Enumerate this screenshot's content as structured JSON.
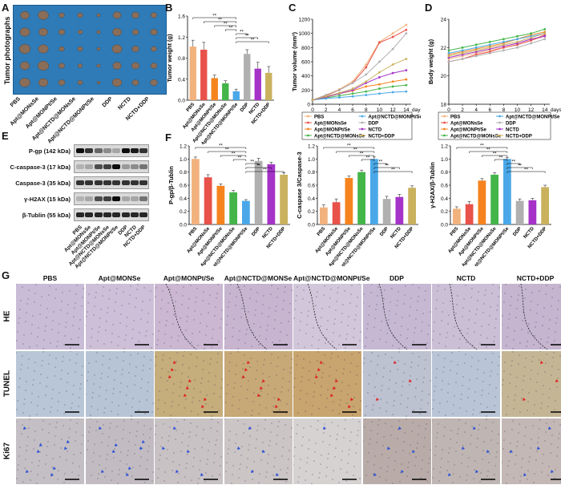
{
  "panels": {
    "A": {
      "letter": "A",
      "vertical_label": "Tumor photographs",
      "groups": [
        "PBS",
        "Apt@MONsSe",
        "Apt@MONPt/Se",
        "Apt@NCTD@MONsSe",
        "Apt@NCTD@MONPt/Se",
        "DDP",
        "NCTD",
        "NCTD+DDP"
      ]
    },
    "B": {
      "letter": "B"
    },
    "C": {
      "letter": "C"
    },
    "D": {
      "letter": "D"
    },
    "E": {
      "letter": "E",
      "bands": [
        "P-gp (142 kDa)",
        "C-caspase-3 (17 kDa)",
        "Caspase-3 (35 kDa)",
        "γ-H2AX (15 kDa)",
        "β-Tublin (55 kDa)"
      ],
      "groups": [
        "PBS",
        "Apt@MONsSe",
        "Apt@MONPt/Se",
        "Apt@NCTD@MONsSe",
        "Apt@NCTD@MONPt/Se",
        "DDP",
        "NCTD",
        "NCTD+DDP"
      ]
    },
    "F": {
      "letter": "F"
    },
    "G": {
      "letter": "G",
      "columns": [
        "PBS",
        "Apt@MONSe",
        "Apt@MONPt/Se",
        "Apt@NCTD@MONSe",
        "Apt@NCTD@MONPt/Se",
        "DDP",
        "NCTD",
        "NCTD+DDP"
      ],
      "rows": [
        "HE",
        "TUNEL",
        "Ki67"
      ]
    }
  },
  "colors": {
    "PBS": "#f2b27d",
    "Apt@MONsSe": "#e8524a",
    "Apt@MONPt/Se": "#f5841f",
    "Apt@NCTD@MONsSe": "#44b549",
    "Apt@NCTD@MONPt/Se": "#4aa8e8",
    "DDP": "#b0b0b0",
    "NCTD": "#a533c8",
    "NCTD+DDP": "#c9b15e"
  },
  "chart_data": [
    {
      "id": "B",
      "type": "bar",
      "title": "",
      "xlabel": "",
      "ylabel": "Tumor weight (g)",
      "ylim": [
        0,
        1.6
      ],
      "yticks": [
        0.0,
        0.4,
        0.8,
        1.2,
        1.6
      ],
      "categories": [
        "PBS",
        "Apt@MONsSe",
        "Apt@MONPt/Se",
        "Apt@NCTD@MONsSe",
        "Apt@NCTD@MONPt/Se",
        "DDP",
        "NCTD",
        "NCTD+DDP"
      ],
      "values": [
        1.02,
        0.96,
        0.42,
        0.32,
        0.17,
        0.88,
        0.6,
        0.52
      ],
      "errors": [
        0.12,
        0.14,
        0.06,
        0.05,
        0.04,
        0.08,
        0.12,
        0.12
      ],
      "sig": "**"
    },
    {
      "id": "C",
      "type": "line",
      "title": "",
      "xlabel": "days",
      "ylabel": "Tumor volume (mm³)",
      "ylim": [
        0,
        1200
      ],
      "yticks": [
        0,
        200,
        400,
        600,
        800,
        1000,
        1200
      ],
      "x": [
        0,
        2,
        4,
        6,
        8,
        10,
        12,
        14
      ],
      "xticks": [
        0,
        2,
        4,
        6,
        8,
        10,
        12,
        14
      ],
      "series": [
        {
          "name": "PBS",
          "values": [
            60,
            130,
            210,
            320,
            560,
            880,
            1000,
            1120
          ]
        },
        {
          "name": "Apt@MONsSe",
          "values": [
            60,
            120,
            200,
            300,
            520,
            870,
            950,
            1050
          ]
        },
        {
          "name": "Apt@MONPt/Se",
          "values": [
            60,
            100,
            150,
            190,
            250,
            280,
            320,
            350
          ]
        },
        {
          "name": "Apt@NCTD@MONsSe",
          "values": [
            60,
            90,
            120,
            150,
            180,
            220,
            250,
            270
          ]
        },
        {
          "name": "Apt@NCTD@MONPt/Se",
          "values": [
            60,
            80,
            95,
            110,
            130,
            150,
            170,
            180
          ]
        },
        {
          "name": "DDP",
          "values": [
            60,
            130,
            200,
            300,
            420,
            600,
            780,
            1000
          ]
        },
        {
          "name": "NCTD",
          "values": [
            60,
            100,
            150,
            200,
            300,
            380,
            440,
            480
          ]
        },
        {
          "name": "NCTD+DDP",
          "values": [
            60,
            110,
            160,
            220,
            320,
            450,
            560,
            640
          ]
        }
      ],
      "legend_placement": "bottom"
    },
    {
      "id": "D",
      "type": "line",
      "title": "",
      "xlabel": "days",
      "ylabel": "Body weight (g)",
      "ylim": [
        0,
        24
      ],
      "yticks": [
        0,
        18,
        20,
        22,
        24
      ],
      "x": [
        0,
        2,
        4,
        6,
        8,
        10,
        12,
        14
      ],
      "xticks": [
        0,
        2,
        4,
        6,
        8,
        10,
        12,
        14
      ],
      "series": [
        {
          "name": "PBS",
          "values": [
            21.2,
            21.4,
            21.6,
            21.8,
            22.0,
            22.2,
            22.5,
            22.8
          ]
        },
        {
          "name": "Apt@MONsSe",
          "values": [
            21.0,
            21.2,
            21.5,
            21.7,
            22.0,
            22.2,
            22.5,
            22.9
          ]
        },
        {
          "name": "Apt@MONPt/Se",
          "values": [
            21.5,
            21.7,
            21.9,
            22.1,
            22.3,
            22.6,
            22.9,
            23.1
          ]
        },
        {
          "name": "Apt@NCTD@MONsSe",
          "values": [
            21.8,
            22.0,
            22.2,
            22.4,
            22.6,
            22.8,
            23.0,
            23.3
          ]
        },
        {
          "name": "Apt@NCTD@MONPt/Se",
          "values": [
            21.6,
            21.8,
            22.0,
            22.2,
            22.4,
            22.6,
            22.8,
            23.0
          ]
        },
        {
          "name": "DDP",
          "values": [
            21.0,
            21.2,
            21.4,
            21.6,
            21.8,
            22.0,
            22.3,
            22.6
          ]
        },
        {
          "name": "NCTD",
          "values": [
            21.3,
            21.5,
            21.7,
            21.9,
            22.1,
            22.3,
            22.6,
            22.8
          ]
        },
        {
          "name": "NCTD+DDP",
          "values": [
            21.4,
            21.6,
            21.8,
            22.0,
            22.2,
            22.4,
            22.7,
            23.0
          ]
        }
      ],
      "legend": [
        "PBS",
        "Apt@NCTD@MONPt/Se",
        "Apt@MONsSe",
        "DDP",
        "Apt@MONPt/Se",
        "NCTD",
        "Apt@NCTD@MONsSe",
        "NCTD+DDP"
      ],
      "legend_placement": "bottom"
    },
    {
      "id": "F1",
      "type": "bar",
      "title": "",
      "xlabel": "",
      "ylabel": "P-gp/β-Tublin",
      "ylim": [
        0,
        1.2
      ],
      "yticks": [
        0.0,
        0.2,
        0.4,
        0.6,
        0.8,
        1.0,
        1.2
      ],
      "categories": [
        "PBS",
        "Apt@MONsSe",
        "Apt@MONPt/Se",
        "Apt@NCTD@MONsSe",
        "Apt@NCTD@MONPt/Se",
        "DDP",
        "NCTD",
        "NCTD+DDP"
      ],
      "values": [
        1.0,
        0.72,
        0.59,
        0.49,
        0.36,
        0.97,
        0.92,
        0.76
      ],
      "errors": [
        0.03,
        0.04,
        0.03,
        0.03,
        0.02,
        0.04,
        0.03,
        0.03
      ],
      "sig": "**"
    },
    {
      "id": "F2",
      "type": "bar",
      "title": "",
      "xlabel": "",
      "ylabel": "C-caspase 3/Caspase-3",
      "ylim": [
        0,
        1.2
      ],
      "yticks": [
        0.0,
        0.2,
        0.4,
        0.6,
        0.8,
        1.0,
        1.2
      ],
      "categories": [
        "PBS",
        "Apt@MONsSe",
        "Apt@MONPt/Se",
        "Apt@NCTD@MONsSe",
        "Apt@NCTD@MONPt/Se",
        "DDP",
        "NCTD",
        "NCTD+DDP"
      ],
      "values": [
        0.26,
        0.34,
        0.71,
        0.8,
        1.0,
        0.39,
        0.42,
        0.56
      ],
      "errors": [
        0.04,
        0.05,
        0.03,
        0.03,
        0.03,
        0.04,
        0.04,
        0.03
      ],
      "sig": "**"
    },
    {
      "id": "F3",
      "type": "bar",
      "title": "",
      "xlabel": "",
      "ylabel": "γ-H2AX/β-Tublin",
      "ylim": [
        0,
        1.2
      ],
      "yticks": [
        0.0,
        0.2,
        0.4,
        0.6,
        0.8,
        1.0,
        1.2
      ],
      "categories": [
        "PBS",
        "Apt@MONsSe",
        "Apt@MONPt/Se",
        "Apt@NCTD@MONsSe",
        "Apt@NCTD@MONPt/Se",
        "DDP",
        "NCTD",
        "NCTD+DDP"
      ],
      "values": [
        0.24,
        0.31,
        0.67,
        0.76,
        1.0,
        0.36,
        0.37,
        0.57
      ],
      "errors": [
        0.03,
        0.04,
        0.03,
        0.03,
        0.02,
        0.03,
        0.03,
        0.03
      ],
      "sig": "**"
    }
  ]
}
